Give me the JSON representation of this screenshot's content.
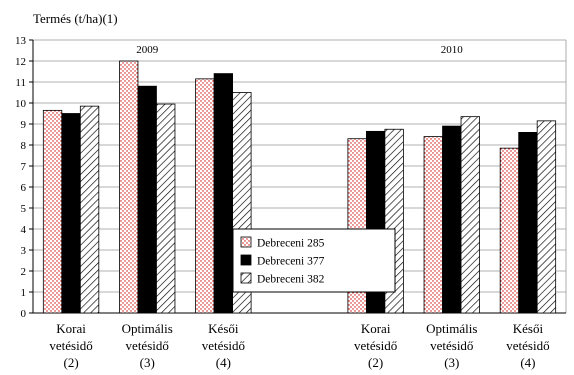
{
  "chart_data": {
    "type": "bar",
    "ylabel": "Termés (t/ha)(1)",
    "ylim": [
      0,
      13
    ],
    "yticks": [
      0,
      1,
      2,
      3,
      4,
      5,
      6,
      7,
      8,
      9,
      10,
      11,
      12,
      13
    ],
    "grid": true,
    "legend_position": "center",
    "groups": [
      {
        "label": "2009",
        "categories": [
          {
            "lines": [
              "Korai",
              "vetésidő",
              "(2)"
            ]
          },
          {
            "lines": [
              "Optimális",
              "vetésidő",
              "(3)"
            ]
          },
          {
            "lines": [
              "Késői",
              "vetésidő",
              "(4)"
            ]
          }
        ]
      },
      {
        "label": "2010",
        "categories": [
          {
            "lines": [
              "Korai",
              "vetésidő",
              "(2)"
            ]
          },
          {
            "lines": [
              "Optimális",
              "vetésidő",
              "(3)"
            ]
          },
          {
            "lines": [
              "Késői",
              "vetésidő",
              "(4)"
            ]
          }
        ]
      }
    ],
    "series": [
      {
        "name": "Debreceni 285",
        "pattern": "dotted-red",
        "values": [
          9.65,
          12.0,
          11.15,
          8.3,
          8.4,
          7.85
        ]
      },
      {
        "name": "Debreceni 377",
        "pattern": "solid-black",
        "values": [
          9.5,
          10.8,
          11.4,
          8.65,
          8.9,
          8.6
        ]
      },
      {
        "name": "Debreceni 382",
        "pattern": "hatched",
        "values": [
          9.85,
          9.95,
          10.5,
          8.75,
          9.35,
          9.15
        ]
      }
    ]
  }
}
